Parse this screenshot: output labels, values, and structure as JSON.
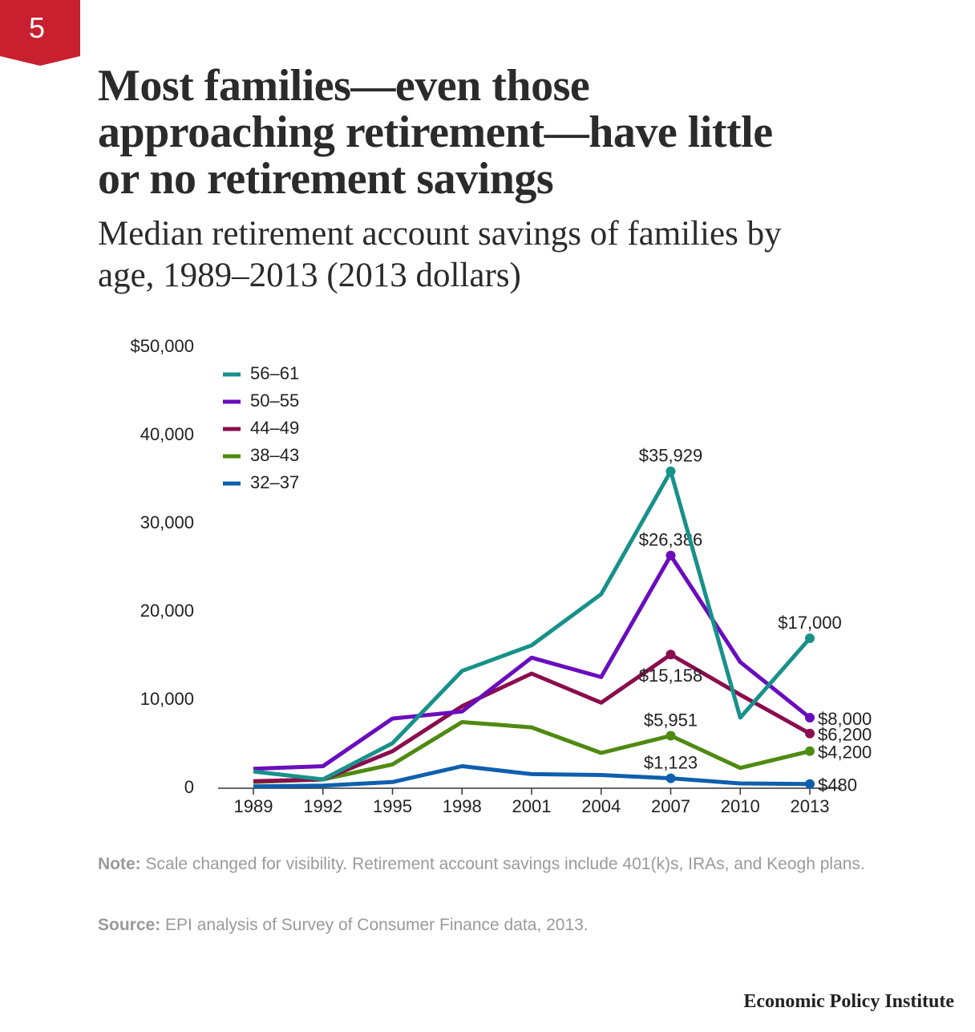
{
  "badge": "5",
  "chart_data": {
    "type": "line",
    "title": "Most families—even those approaching retirement—have little or no retirement savings",
    "subtitle": "Median retirement account savings of families by age, 1989–2013 (2013 dollars)",
    "categories": [
      "1989",
      "1992",
      "1995",
      "1998",
      "2001",
      "2004",
      "2007",
      "2010",
      "2013"
    ],
    "series": [
      {
        "name": "56–61",
        "color": "#17918a",
        "values": [
          1900,
          1000,
          5100,
          13300,
          16200,
          22000,
          35929,
          8000,
          17000
        ],
        "value_labels": [
          null,
          null,
          null,
          null,
          null,
          null,
          "$35,929",
          null,
          "$17,000"
        ]
      },
      {
        "name": "50–55",
        "color": "#6a0dbd",
        "values": [
          2200,
          2500,
          7900,
          8700,
          14800,
          12600,
          26386,
          14300,
          8000
        ],
        "value_labels": [
          null,
          null,
          null,
          null,
          null,
          null,
          "$26,386",
          null,
          "$8,000"
        ]
      },
      {
        "name": "44–49",
        "color": "#8a0d4e",
        "values": [
          800,
          1000,
          4200,
          9300,
          13000,
          9700,
          15158,
          10600,
          6200
        ],
        "value_labels": [
          null,
          null,
          null,
          null,
          null,
          null,
          "$15,158",
          null,
          "$6,200"
        ]
      },
      {
        "name": "38–43",
        "color": "#4f8a10",
        "values": [
          700,
          1000,
          2700,
          7500,
          6900,
          4000,
          5951,
          2300,
          4200
        ],
        "value_labels": [
          null,
          null,
          null,
          null,
          null,
          null,
          "$5,951",
          null,
          "$4,200"
        ]
      },
      {
        "name": "32–37",
        "color": "#0e5fae",
        "values": [
          200,
          300,
          700,
          2500,
          1600,
          1500,
          1123,
          550,
          480
        ],
        "value_labels": [
          null,
          null,
          null,
          null,
          null,
          null,
          "$1,123",
          null,
          "$480"
        ]
      }
    ],
    "ylim": [
      0,
      50000
    ],
    "yticks": [
      0,
      {
        "value": 10000,
        "label": "10,000"
      },
      {
        "value": 20000,
        "label": "20,000"
      },
      {
        "value": 30000,
        "label": "30,000"
      },
      {
        "value": 40000,
        "label": "40,000"
      },
      {
        "value": 50000,
        "label": "$50,000"
      }
    ],
    "legend": "upper-left",
    "grid": false
  },
  "note": {
    "label": "Note:",
    "text": "Scale changed for visibility. Retirement account savings include 401(k)s, IRAs, and Keogh plans."
  },
  "source": {
    "label": "Source:",
    "text": "EPI analysis of  Survey of Consumer Finance data, 2013."
  },
  "brand": "Economic Policy Institute"
}
